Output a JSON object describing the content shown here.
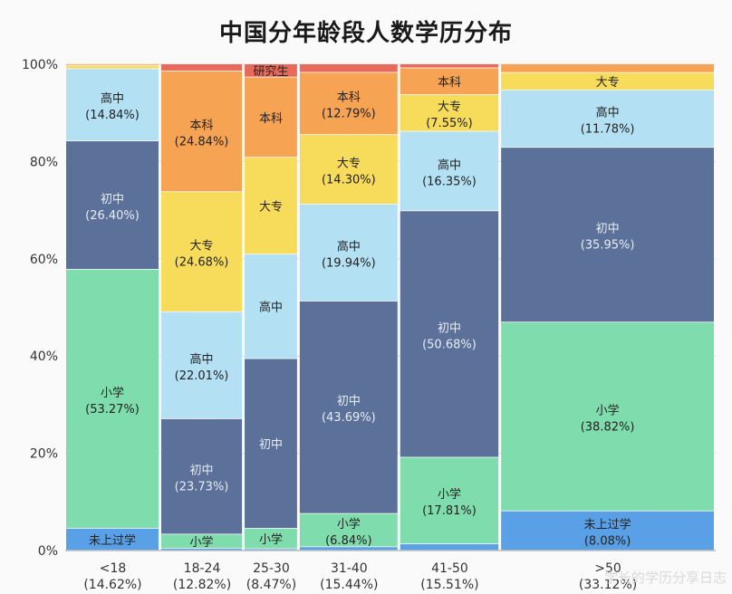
{
  "chart_data": {
    "type": "mosaic",
    "title": "中国分年龄段人数学历分布",
    "y_ticks": [
      "0%",
      "20%",
      "40%",
      "60%",
      "80%",
      "100%"
    ],
    "ylim": [
      0,
      100
    ],
    "grid": true,
    "categories": [
      {
        "label": "<18",
        "share_label": "(14.62%)",
        "share": 14.62
      },
      {
        "label": "18-24",
        "share_label": "(12.82%)",
        "share": 12.82
      },
      {
        "label": "25-30",
        "share_label": "(8.47%)",
        "share": 8.47
      },
      {
        "label": "31-40",
        "share_label": "(15.44%)",
        "share": 15.44
      },
      {
        "label": "41-50",
        "share_label": "(15.51%)",
        "share": 15.51
      },
      {
        "label": ">50",
        "share_label": "(33.12%)",
        "share": 33.12
      }
    ],
    "levels": [
      {
        "name": "未上过学",
        "color": "#5aa0e6"
      },
      {
        "name": "小学",
        "color": "#7fdcac"
      },
      {
        "name": "初中",
        "color": "#5b7199"
      },
      {
        "name": "高中",
        "color": "#b4e0f4"
      },
      {
        "name": "大专",
        "color": "#f7dc5c"
      },
      {
        "name": "本科",
        "color": "#f7a354"
      },
      {
        "name": "研究生",
        "color": "#e86a5a"
      }
    ],
    "segments": [
      [
        {
          "level": "未上过学",
          "value": 4.5,
          "label": "未上过学",
          "pct": ""
        },
        {
          "level": "小学",
          "value": 53.27,
          "label": "小学",
          "pct": "(53.27%)"
        },
        {
          "level": "初中",
          "value": 26.4,
          "label": "初中",
          "pct": "(26.40%)"
        },
        {
          "level": "高中",
          "value": 14.84,
          "label": "高中",
          "pct": "(14.84%)"
        },
        {
          "level": "大专",
          "value": 0.7,
          "label": "",
          "pct": ""
        },
        {
          "level": "本科",
          "value": 0.29,
          "label": "",
          "pct": ""
        }
      ],
      [
        {
          "level": "未上过学",
          "value": 0.4,
          "label": "",
          "pct": ""
        },
        {
          "level": "小学",
          "value": 2.9,
          "label": "小学",
          "pct": ""
        },
        {
          "level": "初中",
          "value": 23.73,
          "label": "初中",
          "pct": "(23.73%)"
        },
        {
          "level": "高中",
          "value": 22.01,
          "label": "高中",
          "pct": "(22.01%)"
        },
        {
          "level": "大专",
          "value": 24.68,
          "label": "大专",
          "pct": "(24.68%)"
        },
        {
          "level": "本科",
          "value": 24.84,
          "label": "本科",
          "pct": "(24.84%)"
        },
        {
          "level": "研究生",
          "value": 1.44,
          "label": "",
          "pct": ""
        }
      ],
      [
        {
          "level": "未上过学",
          "value": 0.3,
          "label": "",
          "pct": ""
        },
        {
          "level": "小学",
          "value": 4.2,
          "label": "小学",
          "pct": ""
        },
        {
          "level": "初中",
          "value": 34.9,
          "label": "初中",
          "pct": ""
        },
        {
          "level": "高中",
          "value": 21.5,
          "label": "高中",
          "pct": ""
        },
        {
          "level": "大专",
          "value": 19.9,
          "label": "大专",
          "pct": ""
        },
        {
          "level": "本科",
          "value": 16.5,
          "label": "本科",
          "pct": ""
        },
        {
          "level": "研究生",
          "value": 2.7,
          "label": "研究生",
          "pct": ""
        }
      ],
      [
        {
          "level": "未上过学",
          "value": 0.7,
          "label": "",
          "pct": ""
        },
        {
          "level": "小学",
          "value": 6.84,
          "label": "小学",
          "pct": "(6.84%)"
        },
        {
          "level": "初中",
          "value": 43.69,
          "label": "初中",
          "pct": "(43.69%)"
        },
        {
          "level": "高中",
          "value": 19.94,
          "label": "高中",
          "pct": "(19.94%)"
        },
        {
          "level": "大专",
          "value": 14.3,
          "label": "大专",
          "pct": "(14.30%)"
        },
        {
          "level": "本科",
          "value": 12.79,
          "label": "本科",
          "pct": "(12.79%)"
        },
        {
          "level": "研究生",
          "value": 1.74,
          "label": "",
          "pct": ""
        }
      ],
      [
        {
          "level": "未上过学",
          "value": 1.3,
          "label": "",
          "pct": ""
        },
        {
          "level": "小学",
          "value": 17.81,
          "label": "小学",
          "pct": "(17.81%)"
        },
        {
          "level": "初中",
          "value": 50.68,
          "label": "初中",
          "pct": "(50.68%)"
        },
        {
          "level": "高中",
          "value": 16.35,
          "label": "高中",
          "pct": "(16.35%)"
        },
        {
          "level": "大专",
          "value": 7.55,
          "label": "大专",
          "pct": "(7.55%)"
        },
        {
          "level": "本科",
          "value": 5.5,
          "label": "本科",
          "pct": ""
        },
        {
          "level": "研究生",
          "value": 0.81,
          "label": "",
          "pct": ""
        }
      ],
      [
        {
          "level": "未上过学",
          "value": 8.08,
          "label": "未上过学",
          "pct": "(8.08%)"
        },
        {
          "level": "小学",
          "value": 38.82,
          "label": "小学",
          "pct": "(38.82%)"
        },
        {
          "level": "初中",
          "value": 35.95,
          "label": "初中",
          "pct": "(35.95%)"
        },
        {
          "level": "高中",
          "value": 11.78,
          "label": "高中",
          "pct": "(11.78%)"
        },
        {
          "level": "大专",
          "value": 3.6,
          "label": "大专",
          "pct": ""
        },
        {
          "level": "本科",
          "value": 1.77,
          "label": "",
          "pct": ""
        }
      ]
    ]
  },
  "watermark": "学长的学历分享日志"
}
